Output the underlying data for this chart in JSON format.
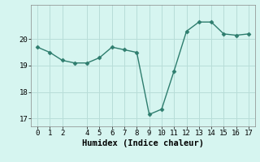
{
  "x": [
    0,
    1,
    2,
    3,
    4,
    5,
    6,
    7,
    8,
    9,
    10,
    11,
    12,
    13,
    14,
    15,
    16,
    17
  ],
  "y": [
    19.7,
    19.5,
    19.2,
    19.1,
    19.1,
    19.3,
    19.7,
    19.6,
    19.5,
    17.15,
    17.35,
    18.8,
    20.3,
    20.65,
    20.65,
    20.2,
    20.15,
    20.2
  ],
  "line_color": "#2e7d6e",
  "marker": "D",
  "marker_size": 2.5,
  "linewidth": 1.0,
  "xlabel": "Humidex (Indice chaleur)",
  "ylim": [
    16.7,
    21.3
  ],
  "xlim": [
    -0.5,
    17.5
  ],
  "yticks": [
    17,
    18,
    19,
    20
  ],
  "xticks": [
    0,
    1,
    2,
    4,
    5,
    6,
    7,
    8,
    9,
    10,
    11,
    12,
    13,
    14,
    15,
    16,
    17
  ],
  "bg_color": "#d6f5f0",
  "grid_color": "#b8ddd8",
  "xlabel_fontsize": 7.5,
  "tick_fontsize": 6.5
}
